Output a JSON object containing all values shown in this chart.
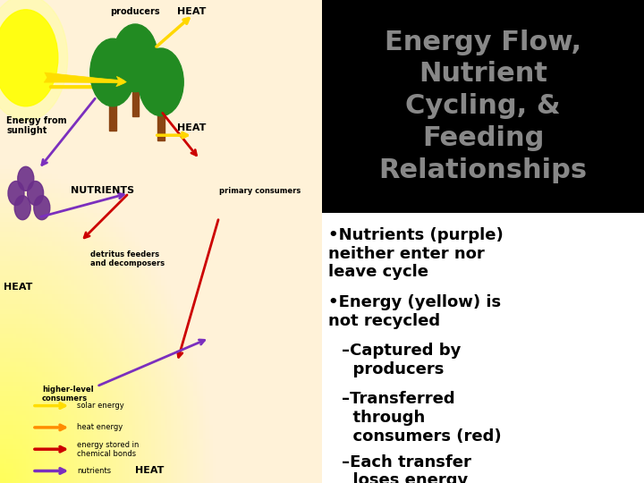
{
  "title_lines": [
    "Energy Flow,",
    "Nutrient",
    "Cycling, &",
    "Feeding",
    "Relationships"
  ],
  "title_bg": "#000000",
  "title_color": "#888888",
  "title_fontsize": 22,
  "bullet_points": [
    {
      "text": "•Nutrients (purple)\nneither enter nor\nleave cycle",
      "indent": 0
    },
    {
      "text": "•Energy (yellow) is\nnot recycled",
      "indent": 0
    },
    {
      "text": "–Captured by\n  producers",
      "indent": 1
    },
    {
      "text": "–Transferred\n  through\n  consumers (red)",
      "indent": 1
    },
    {
      "text": "–Each transfer\n  loses energy\n  (orange)",
      "indent": 1
    }
  ],
  "bullet_fontsize": 13,
  "bullet_color": "#000000",
  "panel_split": 0.5,
  "right_bg": "#ffffff",
  "diagram_image_placeholder": true,
  "fig_width": 7.2,
  "fig_height": 5.4,
  "dpi": 100
}
